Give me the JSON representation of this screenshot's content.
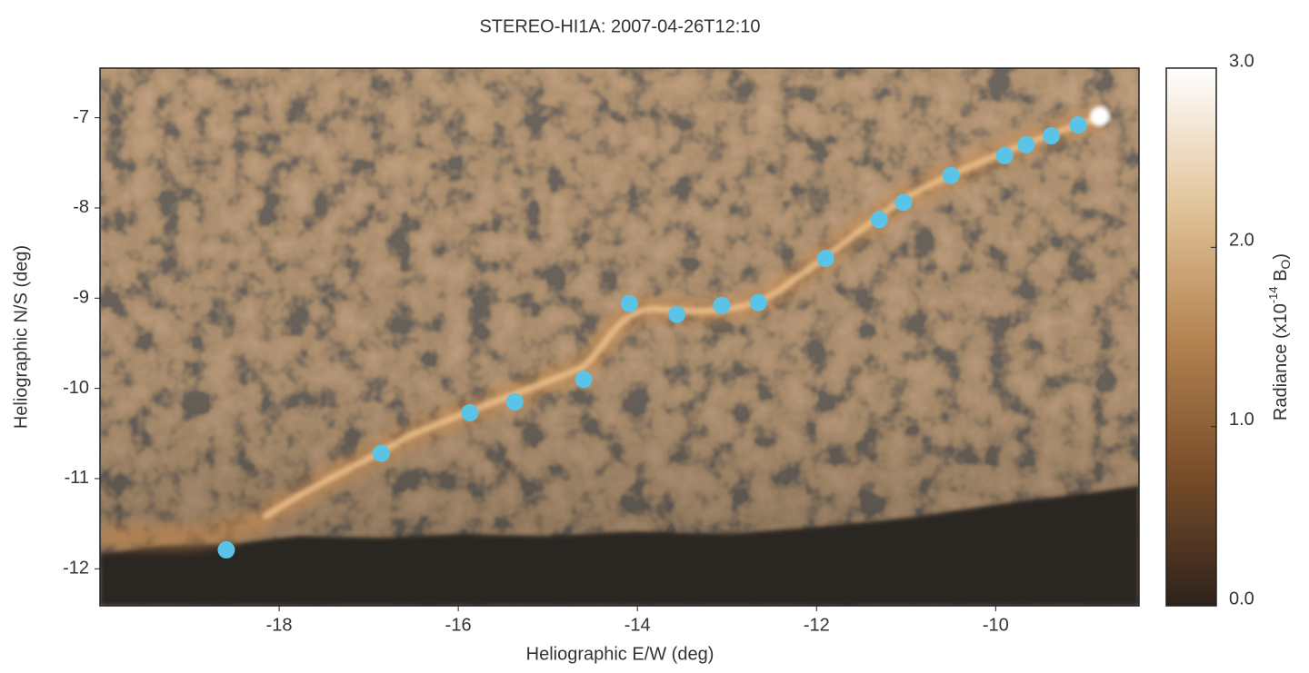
{
  "chart_data": {
    "type": "scatter",
    "title": "STEREO-HI1A: 2007-04-26T12:10",
    "x_label": "Heliographic E/W (deg)",
    "y_label": "Heliographic N/S (deg)",
    "xlim": [
      -20,
      -8.4
    ],
    "ylim": [
      -12.41,
      -6.45
    ],
    "xticks": [
      -18,
      -16,
      -14,
      -12,
      -10
    ],
    "yticks": [
      -7,
      -8,
      -9,
      -10,
      -11,
      -12
    ],
    "color": "#5bc3e6",
    "x": [
      -18.59,
      -16.86,
      -15.87,
      -15.37,
      -14.6,
      -14.09,
      -13.56,
      -13.06,
      -12.65,
      -11.9,
      -11.3,
      -11.03,
      -10.5,
      -9.9,
      -9.66,
      -9.38,
      -9.08
    ],
    "values": [
      -11.79,
      -10.72,
      -10.27,
      -10.15,
      -9.9,
      -9.06,
      -9.18,
      -9.08,
      -9.05,
      -8.56,
      -8.13,
      -7.94,
      -7.64,
      -7.42,
      -7.3,
      -7.2,
      -7.08
    ],
    "colorbar": {
      "lim": [
        0,
        3
      ],
      "ticks": [
        {
          "value": 0,
          "label": "0.0"
        },
        {
          "value": 1,
          "label": "1.0"
        },
        {
          "value": 2,
          "label": "2.0"
        },
        {
          "value": 3,
          "label": "3.0"
        }
      ],
      "colors": [
        "#2e221b",
        "#7a4e2a",
        "#b58452",
        "#e2c59b",
        "#ffffff"
      ],
      "label": {
        "text": "Radiance (x10",
        "exponent": "-14",
        "unit": " B",
        "subscript": "O",
        "close": ")"
      }
    }
  }
}
